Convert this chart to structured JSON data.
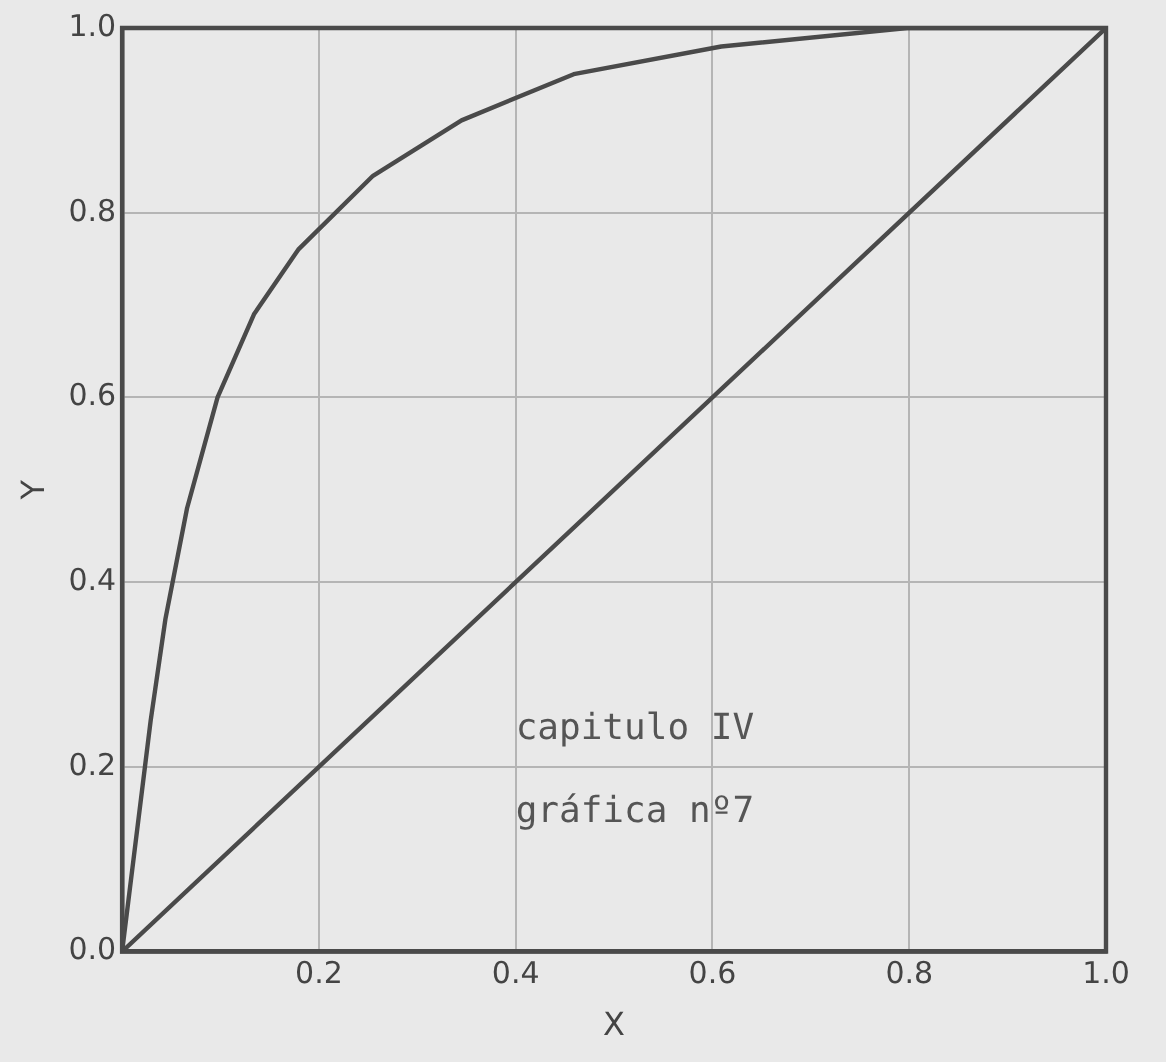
{
  "chart_data": {
    "type": "line",
    "xlabel": "X",
    "ylabel": "Y",
    "xlim": [
      0,
      1
    ],
    "ylim": [
      0,
      1
    ],
    "xticks": [
      {
        "value": 0,
        "label": null
      },
      0.2,
      0.4,
      0.6,
      0.8,
      {
        "value": 1,
        "label": "1.0"
      }
    ],
    "yticks": [
      {
        "value": 0,
        "label": "0.0"
      },
      0.2,
      0.4,
      0.6,
      0.8,
      {
        "value": 1,
        "label": "1.0"
      }
    ],
    "grid": true,
    "legend": false,
    "marker": "none",
    "line_style": "solid",
    "annotations": [
      "capitulo IV",
      "gráfica nº7"
    ],
    "series": [
      {
        "color": "#4a4a4a",
        "x": [
          0,
          0.029,
          0.044,
          0.066,
          0.097,
          0.134,
          0.179,
          0.255,
          0.345,
          0.459,
          0.609,
          0.798,
          1
        ],
        "values": [
          0,
          0.25,
          0.36,
          0.48,
          0.6,
          0.69,
          0.76,
          0.84,
          0.9,
          0.95,
          0.98,
          1,
          1
        ]
      },
      {
        "color": "#4a4a4a",
        "x": [
          0,
          1
        ],
        "values": [
          0,
          1
        ]
      }
    ]
  }
}
